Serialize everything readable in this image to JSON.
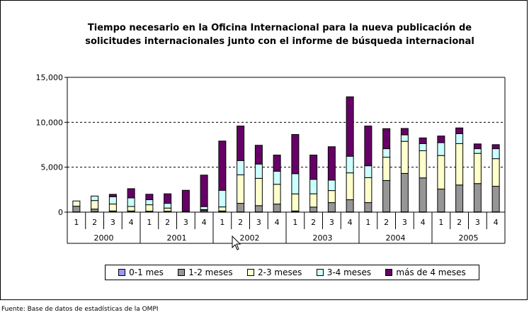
{
  "chart_data": {
    "type": "bar",
    "stacked": true,
    "title": "Tiempo necesario en la Oficina Internacional para la nueva publicación de solicitudes internacionales junto con el informe de búsqueda internacional",
    "title_lines": [
      "Tiempo necesario en la Oficina Internacional para la nueva publicación de",
      "solicitudes internacionales junto con el informe de búsqueda internacional"
    ],
    "xlabel": "",
    "ylabel": "",
    "ylim": [
      0,
      15000
    ],
    "yticks": [
      "0",
      "5,000",
      "10,000",
      "15,000"
    ],
    "ytick_values": [
      0,
      5000,
      10000,
      15000
    ],
    "grid": "dashed horizontal",
    "legend_position": "bottom",
    "years": [
      "2000",
      "2001",
      "2002",
      "2003",
      "2004",
      "2005"
    ],
    "quarters": [
      "1",
      "2",
      "3",
      "4"
    ],
    "series": [
      {
        "name": "0-1 mes",
        "color": "#9999FF",
        "values": [
          30,
          50,
          50,
          60,
          50,
          50,
          50,
          50,
          30,
          30,
          30,
          30,
          30,
          30,
          30,
          30,
          30,
          30,
          30,
          30,
          30,
          30,
          30,
          30
        ]
      },
      {
        "name": "1-2 meses",
        "color": "#969696",
        "values": [
          630,
          290,
          80,
          70,
          50,
          50,
          50,
          150,
          100,
          950,
          690,
          870,
          100,
          530,
          1030,
          1350,
          1030,
          3490,
          4280,
          3780,
          2540,
          2990,
          3150,
          2850
        ]
      },
      {
        "name": "2-3 meses",
        "color": "#FFFFCC",
        "values": [
          580,
          950,
          770,
          500,
          720,
          350,
          0,
          80,
          450,
          3170,
          3040,
          2200,
          1900,
          1480,
          1340,
          2990,
          2780,
          2590,
          3570,
          3020,
          3730,
          4600,
          3360,
          3070
        ]
      },
      {
        "name": "3-4 meses",
        "color": "#CCFFFF",
        "values": [
          0,
          500,
          820,
          950,
          560,
          530,
          0,
          340,
          1850,
          1590,
          1590,
          1450,
          2250,
          1610,
          1170,
          1850,
          1320,
          950,
          720,
          790,
          1430,
          1110,
          520,
          1110
        ]
      },
      {
        "name": "más de 4 meses",
        "color": "#660066",
        "values": [
          0,
          0,
          260,
          1030,
          610,
          1060,
          2330,
          3500,
          5480,
          3840,
          2090,
          1800,
          4360,
          2700,
          3710,
          6610,
          4420,
          2230,
          710,
          640,
          740,
          640,
          530,
          450
        ]
      }
    ]
  },
  "source": "Fuente: Base de datos de estadísticas de la OMPI"
}
